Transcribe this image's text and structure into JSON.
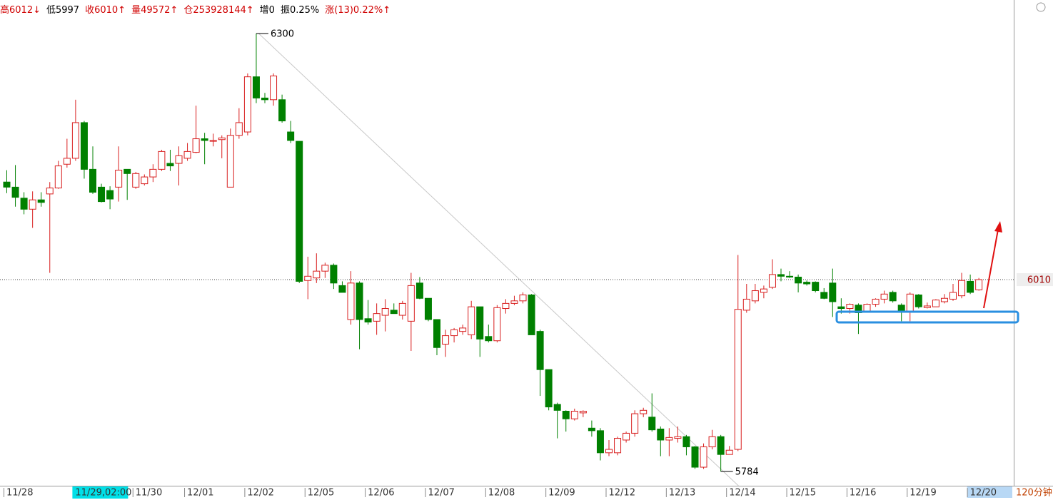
{
  "header": {
    "items": [
      {
        "text": "高6012↓",
        "color": "#d00000"
      },
      {
        "text": "低5997",
        "color": "#000000"
      },
      {
        "text": "收6010↑",
        "color": "#d00000"
      },
      {
        "text": "量49572↑",
        "color": "#d00000"
      },
      {
        "text": "仓253928144↑",
        "color": "#d00000"
      },
      {
        "text": "增0",
        "color": "#000000"
      },
      {
        "text": "振0.25%",
        "color": "#000000"
      },
      {
        "text": "涨(13)0.22%↑",
        "color": "#d00000"
      }
    ]
  },
  "chart_data": {
    "type": "candlestick",
    "categories": [
      "11/28",
      null,
      null,
      null,
      null,
      null,
      null,
      null,
      "11/29,02:00",
      null,
      null,
      null,
      null,
      null,
      null,
      "11/30",
      null,
      null,
      null,
      null,
      null,
      "12/01",
      null,
      null,
      null,
      null,
      null,
      null,
      "12/02",
      null,
      null,
      null,
      null,
      null,
      null,
      "12/05",
      null,
      null,
      null,
      null,
      null,
      null,
      "12/06",
      null,
      null,
      null,
      null,
      null,
      null,
      "12/07",
      null,
      null,
      null,
      null,
      null,
      null,
      "12/08",
      null,
      null,
      null,
      null,
      null,
      null,
      "12/09",
      null,
      null,
      null,
      null,
      null,
      null,
      "12/12",
      null,
      null,
      null,
      null,
      null,
      null,
      "12/13",
      null,
      null,
      null,
      null,
      null,
      null,
      "12/14",
      null,
      null,
      null,
      null,
      null,
      null,
      "12/15",
      null,
      null,
      null,
      null,
      null,
      null,
      "12/16",
      null,
      null,
      null,
      null,
      null,
      null,
      "12/19",
      null,
      null,
      null,
      null,
      null,
      null,
      "12/20",
      null
    ],
    "open": [
      6125,
      6119,
      6106,
      6093,
      6104,
      6111,
      6118,
      6146,
      6153,
      6195,
      6140,
      6119,
      6115,
      6119,
      6140,
      6119,
      6123,
      6131,
      6140,
      6147,
      6147,
      6153,
      6160,
      6176,
      6173,
      6175,
      6119,
      6180,
      6184,
      6249,
      6224,
      6222,
      6222,
      6184,
      6173,
      6009,
      6012,
      6020,
      6027,
      6003,
      5963,
      6006,
      5964,
      5961,
      5968,
      5974,
      5968,
      5961,
      6006,
      5988,
      5963,
      5934,
      5944,
      5949,
      5945,
      5978,
      5943,
      5938,
      5976,
      5982,
      5985,
      5992,
      5949,
      5904,
      5863,
      5855,
      5846,
      5853,
      5835,
      5832,
      5806,
      5806,
      5821,
      5829,
      5852,
      5848,
      5834,
      5821,
      5823,
      5825,
      5813,
      5789,
      5813,
      5825,
      5804,
      5810,
      5974,
      5985,
      5995,
      6001,
      6016,
      6014,
      6013,
      6007,
      6007,
      5995,
      6006,
      5978,
      5976,
      5980,
      5972,
      5981,
      5987,
      5995,
      5980,
      5972,
      5992,
      5977,
      5978,
      5984,
      5987,
      5991,
      6008,
      5998
    ],
    "high": [
      6139,
      6145,
      6113,
      6114,
      6113,
      6125,
      6150,
      6176,
      6222,
      6197,
      6167,
      6123,
      6120,
      6167,
      6140,
      6137,
      6134,
      6146,
      6163,
      6163,
      6167,
      6171,
      6215,
      6183,
      6182,
      6180,
      6188,
      6212,
      6253,
      6300,
      6230,
      6253,
      6228,
      6197,
      6173,
      6037,
      6041,
      6030,
      6029,
      6008,
      6020,
      6008,
      5986,
      5982,
      5987,
      5982,
      5985,
      6018,
      6013,
      5988,
      5963,
      5951,
      5953,
      5957,
      5985,
      5978,
      5957,
      5980,
      5987,
      5991,
      5995,
      5993,
      5951,
      5904,
      5865,
      5856,
      5858,
      5856,
      5844,
      5835,
      5821,
      5825,
      5831,
      5856,
      5859,
      5876,
      5837,
      5835,
      5837,
      5827,
      5814,
      5817,
      5833,
      5827,
      5814,
      6039,
      6005,
      6005,
      6003,
      6034,
      6023,
      6020,
      6016,
      6009,
      6008,
      6000,
      6023,
      5988,
      5982,
      5982,
      5982,
      5988,
      5997,
      5997,
      5982,
      5995,
      5993,
      5983,
      5987,
      5993,
      6005,
      6018,
      6016,
      6012
    ],
    "low": [
      6112,
      6096,
      6087,
      6071,
      6096,
      6018,
      6117,
      6142,
      6150,
      6129,
      6111,
      6101,
      6093,
      6102,
      6104,
      6117,
      6121,
      6125,
      6138,
      6138,
      6121,
      6150,
      6159,
      6146,
      6167,
      6153,
      6119,
      6176,
      6180,
      6218,
      6218,
      6215,
      6195,
      6171,
      6006,
      5987,
      6006,
      6012,
      5999,
      5995,
      5957,
      5928,
      5957,
      5945,
      5949,
      5970,
      5963,
      5926,
      5987,
      5961,
      5921,
      5919,
      5936,
      5945,
      5940,
      5919,
      5936,
      5936,
      5970,
      5980,
      5982,
      5945,
      5873,
      5856,
      5823,
      5831,
      5844,
      5848,
      5825,
      5797,
      5802,
      5803,
      5818,
      5825,
      5848,
      5831,
      5802,
      5802,
      5818,
      5803,
      5787,
      5787,
      5810,
      5784,
      5804,
      5808,
      5971,
      5982,
      5988,
      5999,
      6008,
      6012,
      5995,
      6003,
      5995,
      5987,
      5966,
      5970,
      5970,
      5946,
      5971,
      5978,
      5982,
      5983,
      5961,
      5961,
      5976,
      5976,
      5978,
      5982,
      5985,
      5988,
      5993,
      5997
    ],
    "close": [
      6119,
      6107,
      6093,
      6104,
      6101,
      6118,
      6144,
      6153,
      6195,
      6140,
      6113,
      6102,
      6105,
      6139,
      6135,
      6135,
      6131,
      6140,
      6161,
      6144,
      6156,
      6161,
      6176,
      6174,
      6174,
      6177,
      6180,
      6195,
      6249,
      6224,
      6222,
      6250,
      6197,
      6174,
      6008,
      6014,
      6020,
      6027,
      6006,
      5995,
      6006,
      5963,
      5960,
      5970,
      5976,
      5970,
      5982,
      6003,
      5988,
      5963,
      5930,
      5944,
      5951,
      5953,
      5978,
      5940,
      5938,
      5977,
      5982,
      5985,
      5992,
      5945,
      5904,
      5860,
      5856,
      5846,
      5855,
      5855,
      5832,
      5806,
      5810,
      5823,
      5829,
      5852,
      5856,
      5833,
      5821,
      5824,
      5825,
      5813,
      5789,
      5813,
      5825,
      5804,
      5809,
      5975,
      5987,
      5997,
      5999,
      6016,
      6014,
      6013,
      6006,
      6005,
      5997,
      5988,
      5984,
      5976,
      5981,
      5971,
      5981,
      5987,
      5993,
      5985,
      5972,
      5993,
      5978,
      5979,
      5986,
      5988,
      5995,
      6009,
      5995,
      6010
    ],
    "up_color": "#d81e1e",
    "down_color": "#008000",
    "ylim": [
      5768,
      6339.5
    ],
    "cursor_index": 8,
    "max_marker": 6300,
    "min_marker": 5784,
    "last_price": 6010,
    "period_label": "120分钟"
  }
}
